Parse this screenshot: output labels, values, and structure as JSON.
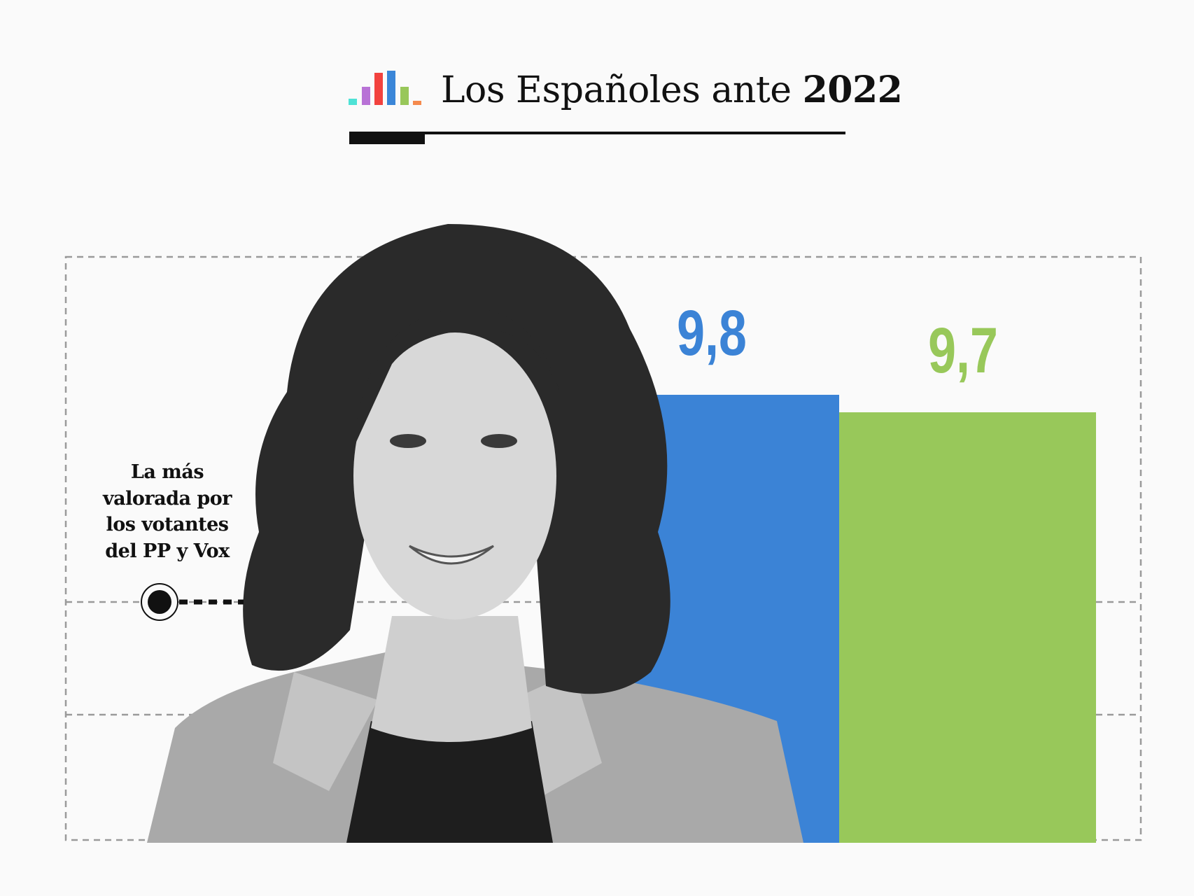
{
  "header": {
    "title_regular": "Los Españoles ante",
    "title_bold": "2022",
    "logo_colors": [
      "#4ee2d6",
      "#b872d6",
      "#f2423e",
      "#3a86d8",
      "#98c75a",
      "#f58a4d"
    ]
  },
  "annotation": {
    "text": "La más valorada por los votantes del PP y Vox"
  },
  "chart_data": {
    "type": "bar",
    "categories": [
      "",
      ""
    ],
    "values": [
      9.8,
      9.7
    ],
    "data_labels": [
      "9,8",
      "9,7"
    ],
    "colors": [
      "#3b83d6",
      "#98c85a"
    ],
    "grid": true,
    "legend": "none"
  }
}
